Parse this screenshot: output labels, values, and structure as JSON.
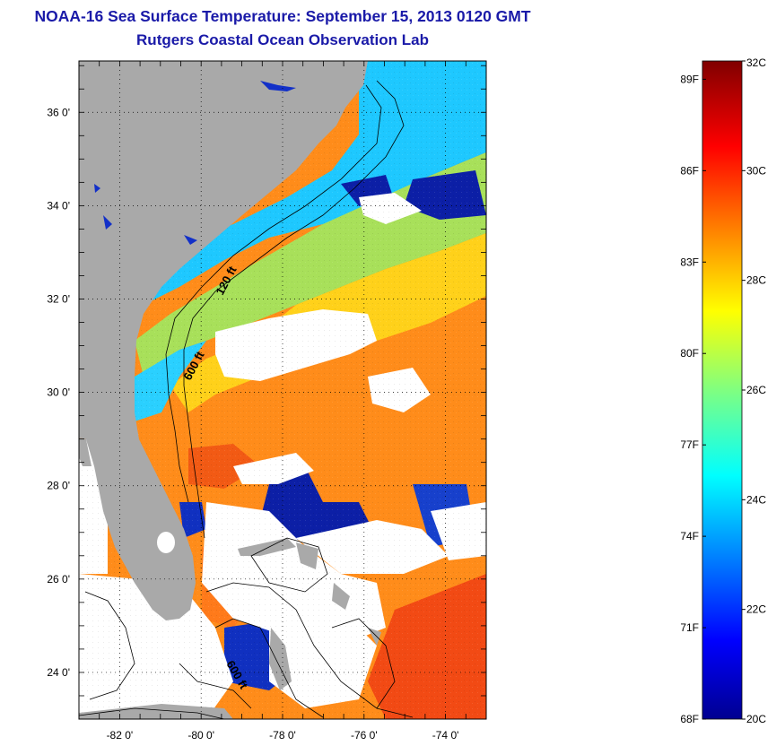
{
  "header": {
    "title": "NOAA-16 Sea Surface Temperature:  September 15, 2013 0120 GMT",
    "subtitle": "Rutgers Coastal Ocean Observation Lab"
  },
  "map": {
    "lon_range": [
      -83,
      -73
    ],
    "lat_range": [
      23,
      37.1
    ],
    "lat_ticks": [
      {
        "value": 36,
        "label": "36 0'"
      },
      {
        "value": 34,
        "label": "34 0'"
      },
      {
        "value": 32,
        "label": "32 0'"
      },
      {
        "value": 30,
        "label": "30 0'"
      },
      {
        "value": 28,
        "label": "28 0'"
      },
      {
        "value": 26,
        "label": "26 0'"
      },
      {
        "value": 24,
        "label": "24 0'"
      }
    ],
    "lon_ticks": [
      {
        "value": -82,
        "label": "-82 0'"
      },
      {
        "value": -80,
        "label": "-80 0'"
      },
      {
        "value": -78,
        "label": "-78 0'"
      },
      {
        "value": -76,
        "label": "-76 0'"
      },
      {
        "value": -74,
        "label": "-74 0'"
      }
    ],
    "contour_labels": [
      "120 ft",
      "600 ft",
      "600 ft"
    ],
    "colors": {
      "land": "#a9a9a9",
      "cloud": "#ffffff",
      "cold": "#0a1fa8",
      "cyan": "#1fd6ff",
      "green": "#8fe06a",
      "yellow": "#ffd21a",
      "orange": "#ff8a1a",
      "red": "#f24a14"
    }
  },
  "colorbar": {
    "range_c": [
      20,
      32
    ],
    "celsius_labels": [
      "32C",
      "30C",
      "28C",
      "26C",
      "24C",
      "22C",
      "20C"
    ],
    "fahrenheit_labels": [
      "89F",
      "86F",
      "83F",
      "80F",
      "77F",
      "74F",
      "71F",
      "68F"
    ],
    "fahrenheit_values": [
      89,
      86,
      83,
      80,
      77,
      74,
      71,
      68
    ]
  }
}
